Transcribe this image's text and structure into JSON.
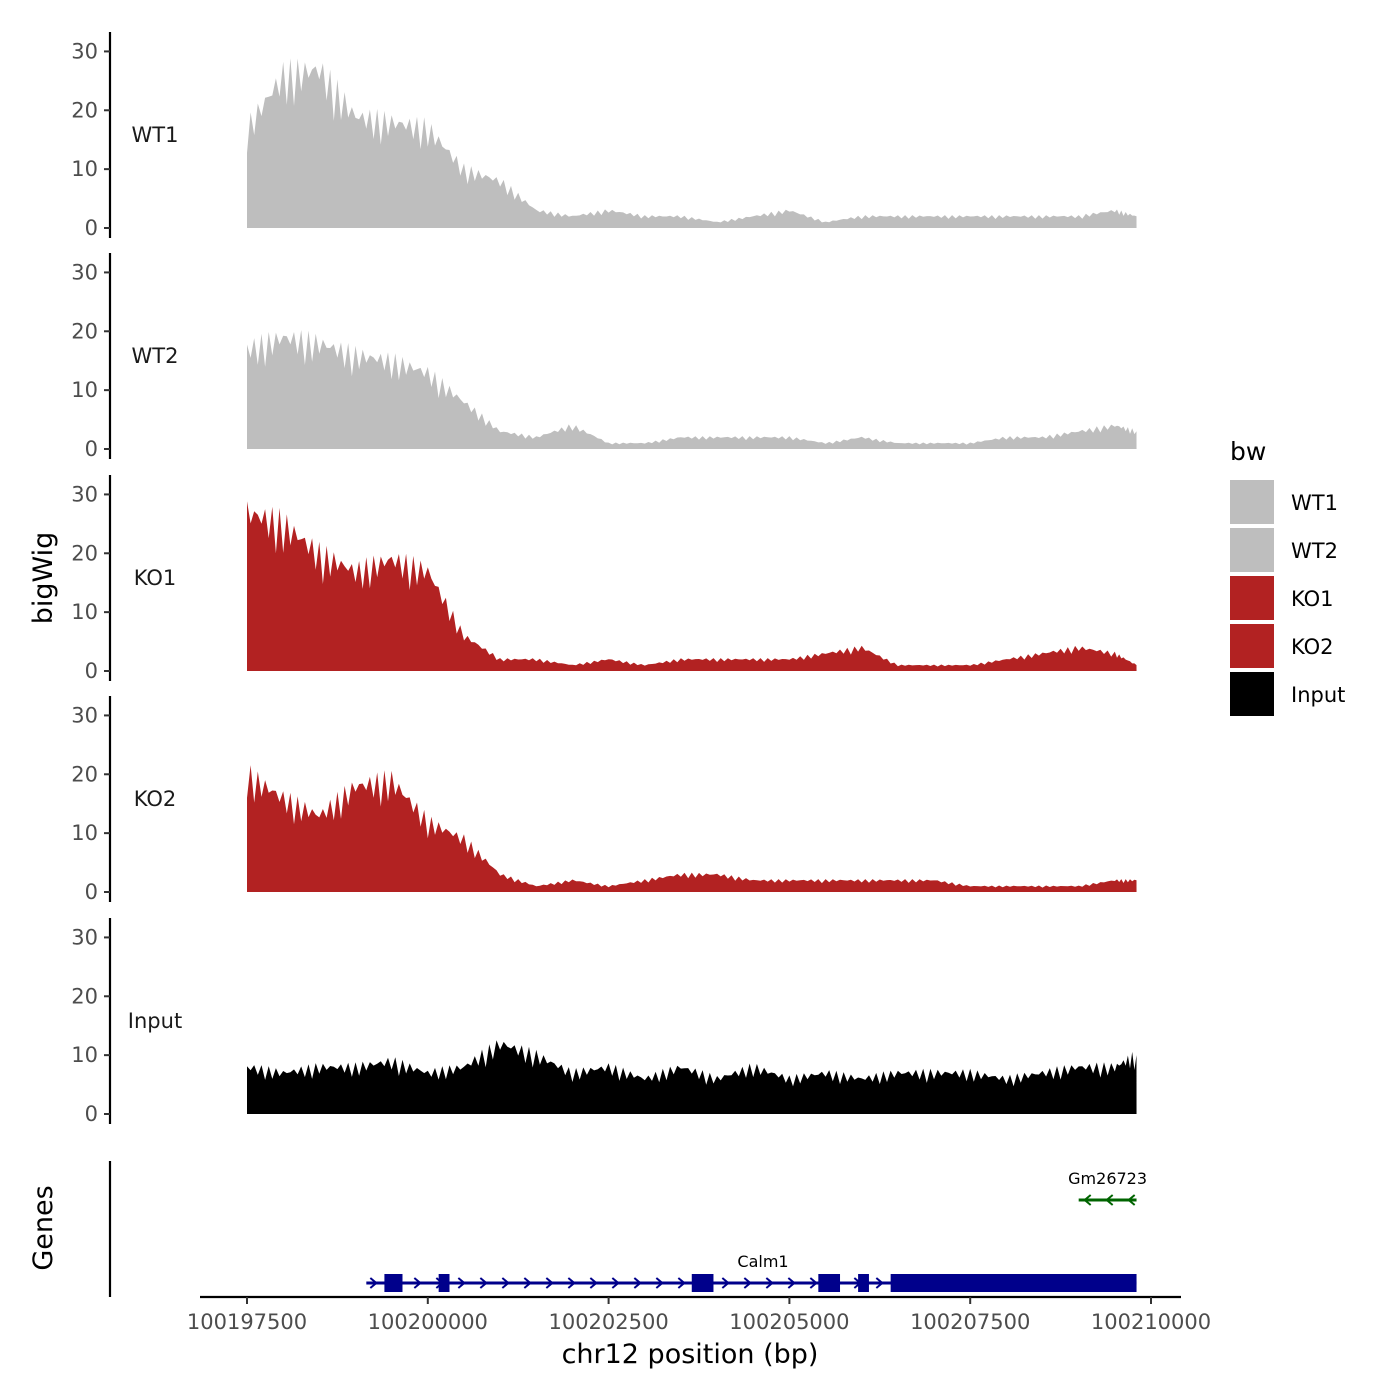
{
  "chart_data": {
    "type": "area",
    "region": "chr12",
    "xlabel": "chr12 position (bp)",
    "ylabel": "bigWig",
    "genes_panel_label": "Genes",
    "xlim": [
      100197000,
      100210250
    ],
    "ylim": [
      0,
      32
    ],
    "x_ticks": [
      100197500,
      100200000,
      100202500,
      100205000,
      100207500,
      100210000
    ],
    "x_tick_labels": [
      "100197500",
      "100200000",
      "100202500",
      "100205000",
      "100207500",
      "100210000"
    ],
    "y_ticks": [
      0,
      10,
      20,
      30
    ],
    "y_tick_labels": [
      "0",
      "10",
      "20",
      "30"
    ],
    "legend": {
      "title": "bw",
      "entries": [
        {
          "label": "WT1",
          "color": "#bebebe"
        },
        {
          "label": "WT2",
          "color": "#bebebe"
        },
        {
          "label": "KO1",
          "color": "#b22222"
        },
        {
          "label": "KO2",
          "color": "#b22222"
        },
        {
          "label": "Input",
          "color": "#000000"
        }
      ]
    },
    "x": [
      100197500,
      100198000,
      100198500,
      100199000,
      100199500,
      100200000,
      100200500,
      100201000,
      100201500,
      100202000,
      100202500,
      100203000,
      100203500,
      100204000,
      100204500,
      100205000,
      100205500,
      100206000,
      100206500,
      100207000,
      100207500,
      100208000,
      100208500,
      100209000,
      100209500,
      100209800
    ],
    "series": [
      {
        "name": "WT1",
        "color": "#bebebe",
        "values": [
          17,
          26,
          27,
          19,
          18,
          17,
          10,
          8,
          3,
          2,
          3,
          2,
          2,
          1,
          2,
          3,
          1,
          2,
          2,
          2,
          2,
          2,
          2,
          2,
          3,
          2
        ]
      },
      {
        "name": "WT2",
        "color": "#bebebe",
        "values": [
          17,
          19,
          18,
          16,
          15,
          13,
          8,
          3,
          2,
          4,
          1,
          1,
          2,
          2,
          2,
          2,
          1,
          2,
          1,
          1,
          1,
          2,
          2,
          3,
          4,
          3
        ]
      },
      {
        "name": "KO1",
        "color": "#b22222",
        "values": [
          27,
          25,
          20,
          17,
          19,
          17,
          6,
          2,
          2,
          1,
          2,
          1,
          2,
          2,
          2,
          2,
          3,
          4,
          1,
          1,
          1,
          2,
          3,
          4,
          3,
          1
        ]
      },
      {
        "name": "KO2",
        "color": "#b22222",
        "values": [
          20,
          16,
          13,
          18,
          19,
          12,
          9,
          3,
          1,
          2,
          1,
          2,
          3,
          3,
          2,
          2,
          2,
          2,
          2,
          2,
          1,
          1,
          1,
          1,
          2,
          2
        ]
      },
      {
        "name": "Input",
        "color": "#000000",
        "values": [
          8,
          7,
          8,
          8,
          9,
          7,
          8,
          12,
          10,
          7,
          8,
          6,
          8,
          6,
          8,
          6,
          7,
          6,
          7,
          7,
          7,
          6,
          7,
          8,
          8,
          10
        ]
      }
    ],
    "genes": [
      {
        "name": "Calm1",
        "start": 100199150,
        "end": 100209800,
        "strand": "+",
        "color": "#00008b",
        "exons": [
          [
            100199400,
            100199650
          ],
          [
            100200150,
            100200300
          ],
          [
            100203650,
            100203950
          ],
          [
            100205400,
            100205700
          ],
          [
            100205950,
            100206100
          ],
          [
            100206400,
            100209800
          ]
        ]
      },
      {
        "name": "Gm26723",
        "start": 100209000,
        "end": 100209800,
        "strand": "-",
        "color": "#006400",
        "exons": []
      }
    ]
  }
}
